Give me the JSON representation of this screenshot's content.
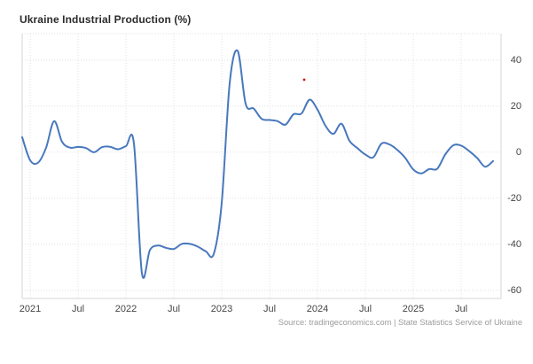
{
  "header": {
    "title": "Ukraine Industrial Production (%)"
  },
  "footer": {
    "source": "Source: tradingeconomics.com | State Statistics Service of Ukraine"
  },
  "chart_data": {
    "type": "line",
    "title": "Ukraine Industrial Production (%)",
    "xlabel": "",
    "ylabel": "",
    "unit": "%",
    "grid": true,
    "legend_position": "none",
    "line_color": "#4878bd",
    "grid_color": "#e1e1e1",
    "axis_color": "#d6d6d6",
    "label_color": "#454545",
    "ylim": [
      -63.5,
      51.5
    ],
    "x_span_months": 60,
    "y_ticks": [
      40,
      20,
      0,
      -20,
      -40,
      -60
    ],
    "x_ticks": [
      {
        "label": "2021",
        "month": "2021-01"
      },
      {
        "label": "Jul",
        "month": "2021-07"
      },
      {
        "label": "2022",
        "month": "2022-01"
      },
      {
        "label": "Jul",
        "month": "2022-07"
      },
      {
        "label": "2023",
        "month": "2023-01"
      },
      {
        "label": "Jul",
        "month": "2023-07"
      },
      {
        "label": "2024",
        "month": "2024-01"
      },
      {
        "label": "Jul",
        "month": "2024-07"
      },
      {
        "label": "2025",
        "month": "2025-01"
      },
      {
        "label": "Jul",
        "month": "2025-07"
      }
    ],
    "x": [
      "2020-12",
      "2021-01",
      "2021-02",
      "2021-03",
      "2021-04",
      "2021-05",
      "2021-06",
      "2021-07",
      "2021-08",
      "2021-09",
      "2021-10",
      "2021-11",
      "2021-12",
      "2022-01",
      "2022-02",
      "2022-03",
      "2022-04",
      "2022-05",
      "2022-06",
      "2022-07",
      "2022-08",
      "2022-09",
      "2022-10",
      "2022-11",
      "2022-12",
      "2023-01",
      "2023-02",
      "2023-03",
      "2023-04",
      "2023-05",
      "2023-06",
      "2023-07",
      "2023-08",
      "2023-09",
      "2023-10",
      "2023-11",
      "2023-12",
      "2024-01",
      "2024-02",
      "2024-03",
      "2024-04",
      "2024-05",
      "2024-06",
      "2024-07",
      "2024-08",
      "2024-09",
      "2024-10",
      "2024-11",
      "2024-12",
      "2025-01",
      "2025-02",
      "2025-03",
      "2025-04",
      "2025-05",
      "2025-06",
      "2025-07",
      "2025-08",
      "2025-09",
      "2025-10",
      "2025-11"
    ],
    "values": [
      6.5,
      -3.5,
      -4.5,
      2.0,
      13.5,
      4.5,
      2.0,
      2.3,
      1.8,
      0.0,
      2.2,
      2.4,
      1.3,
      2.6,
      3.8,
      -52.5,
      -42.5,
      -40.5,
      -41.5,
      -42.0,
      -39.8,
      -39.8,
      -41.0,
      -43.0,
      -44.2,
      -22.0,
      30.0,
      44.0,
      21.0,
      19.0,
      14.5,
      14.0,
      13.5,
      12.0,
      16.5,
      16.8,
      22.8,
      18.5,
      11.5,
      8.0,
      12.4,
      5.0,
      1.8,
      -1.0,
      -2.2,
      3.7,
      3.4,
      1.0,
      -2.5,
      -7.5,
      -9.2,
      -7.3,
      -7.2,
      -1.0,
      3.0,
      2.9,
      0.5,
      -2.5,
      -6.3,
      -3.8
    ],
    "marker": {
      "month": "2023-11",
      "value": 31.5,
      "color": "#d40000"
    }
  }
}
